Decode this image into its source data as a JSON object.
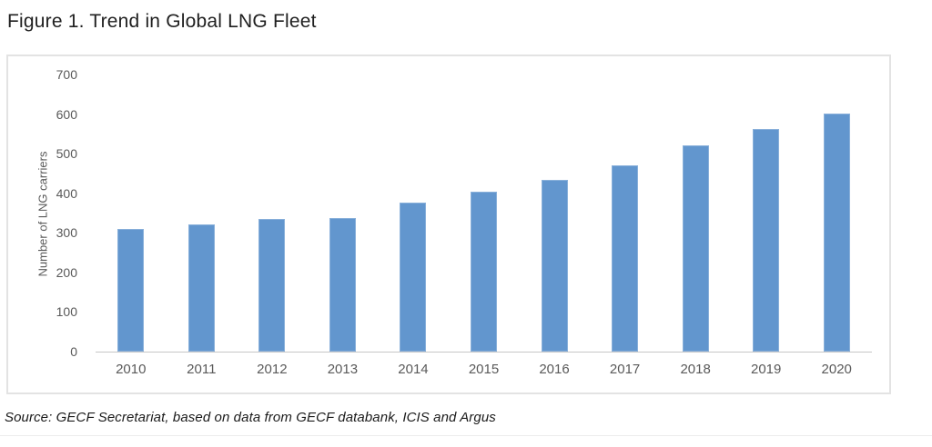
{
  "page": {
    "title": "Figure 1. Trend in Global LNG Fleet",
    "source_note": "Source: GECF Secretariat, based on data from GECF databank, ICIS and Argus"
  },
  "chart_data": {
    "type": "bar",
    "title": "Figure 1. Trend in Global LNG Fleet",
    "categories": [
      "2010",
      "2011",
      "2012",
      "2013",
      "2014",
      "2015",
      "2016",
      "2017",
      "2018",
      "2019",
      "2020"
    ],
    "values": [
      310,
      322,
      334,
      337,
      377,
      405,
      434,
      470,
      520,
      562,
      602
    ],
    "xlabel": "",
    "ylabel": "Number of LNG carriers",
    "ylim": [
      0,
      700
    ],
    "yticks": [
      0,
      100,
      200,
      300,
      400,
      500,
      600,
      700
    ],
    "grid": false,
    "legend": false,
    "bar_color": "#6296ce",
    "axis_line_color": "#c6c6c6",
    "tick_label_color": "#595959"
  }
}
